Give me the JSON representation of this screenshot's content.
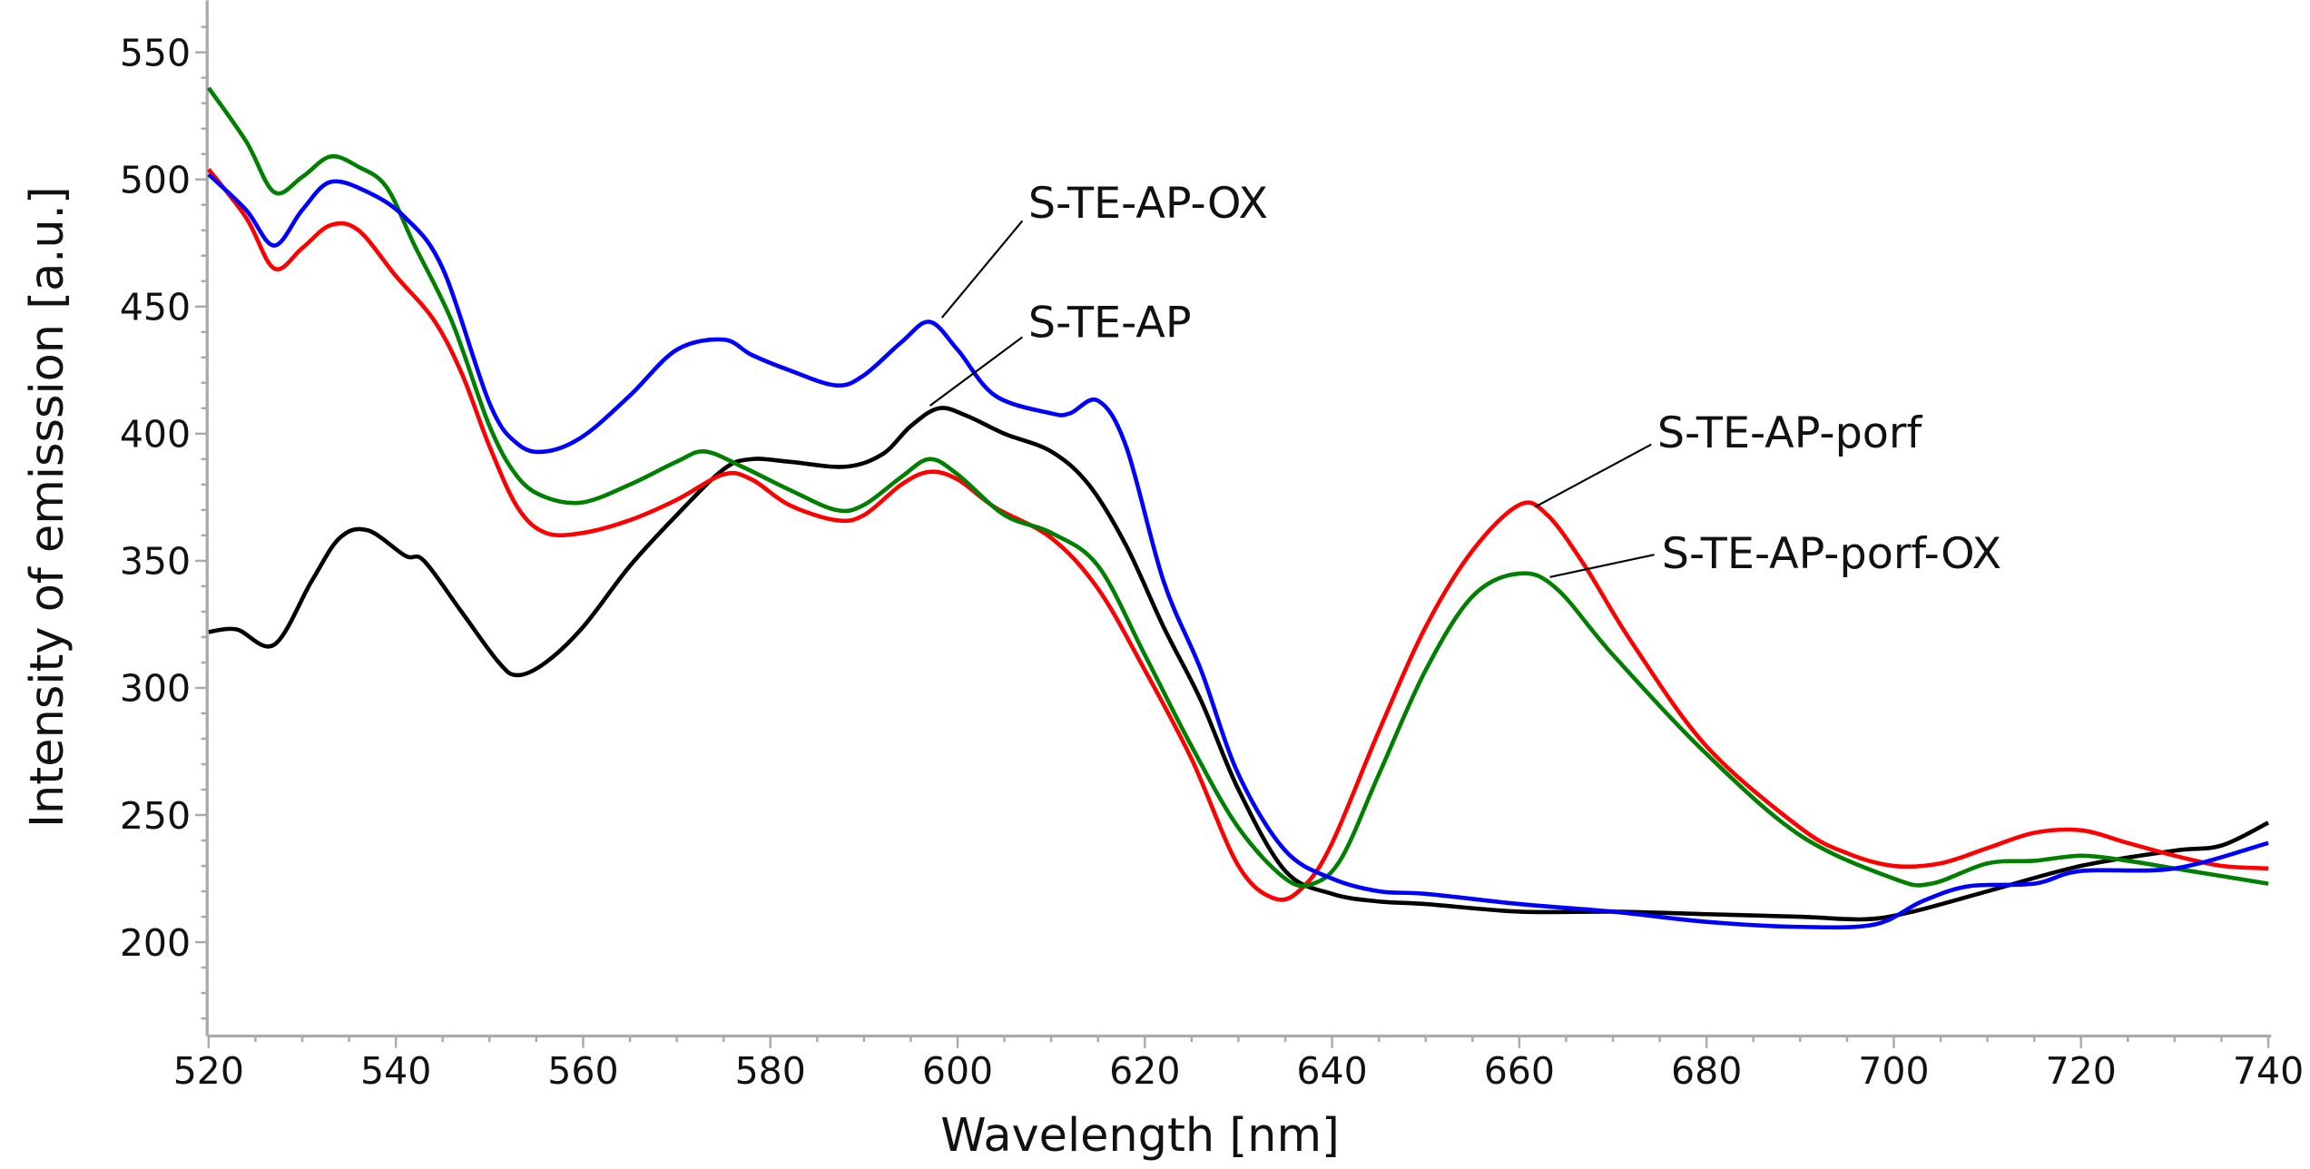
{
  "chart_data": {
    "type": "line",
    "title": "",
    "xlabel": "Wavelength [nm]",
    "ylabel": "Intensity of emisssion [a.u.]",
    "xlim": [
      520,
      740
    ],
    "ylim": [
      163,
      570
    ],
    "xticks": [
      520,
      540,
      560,
      580,
      600,
      620,
      640,
      660,
      680,
      700,
      720,
      740
    ],
    "yticks": [
      200,
      250,
      300,
      350,
      400,
      450,
      500,
      550
    ],
    "grid": false,
    "series": [
      {
        "name": "S-TE-AP",
        "color": "#000000",
        "x": [
          520,
          523,
          527,
          531,
          534,
          537,
          541,
          543,
          547,
          551,
          553,
          556,
          560,
          565,
          570,
          575,
          578,
          582,
          588,
          592,
          595,
          598,
          601,
          605,
          610,
          614,
          618,
          622,
          626,
          630,
          635,
          640,
          645,
          650,
          660,
          670,
          680,
          690,
          697,
          702,
          710,
          720,
          730,
          735,
          740
        ],
        "y": [
          322,
          323,
          317,
          342,
          359,
          362,
          352,
          350,
          330,
          310,
          305,
          310,
          324,
          348,
          368,
          386,
          390,
          389,
          387,
          392,
          403,
          410,
          407,
          400,
          393,
          380,
          356,
          324,
          295,
          260,
          228,
          219,
          216,
          215,
          212,
          212,
          211,
          210,
          209,
          212,
          220,
          230,
          236,
          238,
          247
        ]
      },
      {
        "name": "S-TE-AP-porf",
        "color": "#ff0000",
        "x": [
          520,
          524,
          527,
          530,
          533,
          536,
          540,
          544,
          547,
          550,
          553,
          556,
          560,
          565,
          570,
          575,
          578,
          582,
          587,
          590,
          594,
          597,
          600,
          604,
          610,
          615,
          620,
          625,
          630,
          634,
          637,
          640,
          645,
          650,
          655,
          660,
          663,
          667,
          672,
          680,
          690,
          695,
          700,
          705,
          710,
          715,
          720,
          725,
          730,
          735,
          740
        ],
        "y": [
          504,
          485,
          465,
          473,
          482,
          480,
          462,
          445,
          424,
          395,
          371,
          361,
          361,
          366,
          374,
          384,
          382,
          372,
          366,
          368,
          380,
          385,
          382,
          371,
          359,
          339,
          307,
          272,
          230,
          217,
          222,
          239,
          283,
          324,
          354,
          372,
          368,
          348,
          318,
          277,
          245,
          235,
          230,
          231,
          237,
          243,
          244,
          239,
          234,
          230,
          229
        ]
      },
      {
        "name": "S-TE-AP-porf-OX",
        "color": "#008000",
        "x": [
          520,
          524,
          527,
          530,
          533,
          536,
          539,
          542,
          546,
          550,
          553,
          556,
          560,
          565,
          570,
          573,
          577,
          582,
          587,
          590,
          594,
          597,
          600,
          605,
          610,
          615,
          620,
          625,
          630,
          635,
          638,
          641,
          645,
          650,
          655,
          660,
          664,
          670,
          680,
          690,
          700,
          704,
          710,
          715,
          720,
          725,
          730,
          740
        ],
        "y": [
          536,
          515,
          495,
          501,
          509,
          505,
          497,
          474,
          444,
          403,
          383,
          375,
          373,
          380,
          389,
          393,
          387,
          378,
          370,
          372,
          383,
          390,
          384,
          368,
          361,
          348,
          313,
          277,
          245,
          225,
          223,
          233,
          266,
          307,
          336,
          345,
          339,
          313,
          274,
          242,
          225,
          223,
          231,
          232,
          234,
          232,
          229,
          223
        ]
      },
      {
        "name": "S-TE-AP-OX",
        "color": "#0000ff",
        "x": [
          520,
          524,
          527,
          530,
          533,
          537,
          541,
          545,
          550,
          553,
          556,
          560,
          565,
          570,
          575,
          578,
          582,
          587,
          590,
          594,
          597,
          600,
          604,
          610,
          612,
          615,
          618,
          622,
          626,
          630,
          635,
          640,
          645,
          650,
          660,
          670,
          680,
          690,
          698,
          703,
          708,
          715,
          720,
          730,
          740
        ],
        "y": [
          502,
          488,
          474,
          488,
          499,
          495,
          485,
          465,
          412,
          396,
          393,
          399,
          415,
          433,
          437,
          431,
          425,
          419,
          423,
          436,
          444,
          433,
          415,
          408,
          408,
          413,
          395,
          342,
          307,
          266,
          236,
          225,
          220,
          219,
          215,
          212,
          208,
          206,
          207,
          216,
          222,
          223,
          228,
          229,
          239
        ]
      }
    ],
    "annotations": [
      "S-TE-AP-OX",
      "S-TE-AP",
      "S-TE-AP-porf",
      "S-TE-AP-porf-OX"
    ]
  }
}
